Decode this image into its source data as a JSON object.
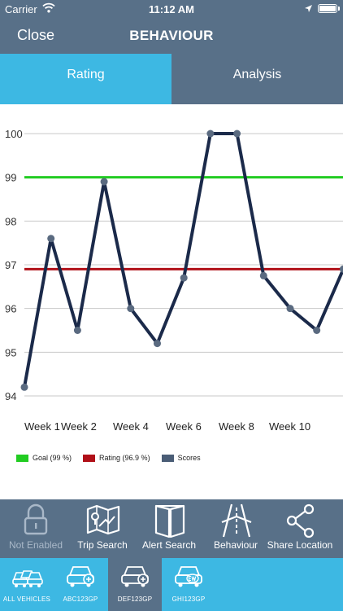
{
  "status_bar": {
    "carrier": "Carrier",
    "time": "11:12 AM"
  },
  "nav": {
    "close_label": "Close",
    "title": "BEHAVIOUR"
  },
  "tabs": [
    {
      "label": "Rating",
      "active": true
    },
    {
      "label": "Analysis",
      "active": false
    }
  ],
  "chart_data": {
    "type": "line",
    "y_ticks": [
      "100",
      "99",
      "98",
      "97",
      "96",
      "95",
      "94"
    ],
    "ylim": [
      94,
      100
    ],
    "x_tick_labels": [
      "Week 1",
      "Week 2",
      "Week 4",
      "Week 6",
      "Week 8",
      "Week 10"
    ],
    "series": [
      {
        "name": "Scores",
        "color": "#1b2a4a",
        "x": [
          1,
          2,
          3,
          4,
          5,
          6,
          7,
          8,
          9,
          10,
          11,
          12,
          13,
          14
        ],
        "values": [
          94.2,
          97.6,
          95.5,
          98.9,
          96.0,
          95.2,
          96.7,
          100.0,
          100.0,
          96.75,
          96.0,
          95.5,
          96.9,
          97.1
        ]
      }
    ],
    "reference_lines": [
      {
        "name": "Goal (99 %)",
        "value": 99,
        "color": "#22cc22"
      },
      {
        "name": "Rating (96.9 %)",
        "value": 96.9,
        "color": "#b01018"
      }
    ],
    "current_marker": {
      "x": 13,
      "value": 96.9,
      "color": "#5bbcef"
    },
    "grid": true,
    "legend_position": "bottom-left"
  },
  "legend": [
    {
      "label": "Goal (99 %)",
      "color": "#22cc22"
    },
    {
      "label": "Rating (96.9 %)",
      "color": "#b01018"
    },
    {
      "label": "Scores",
      "color": "#4a5d76"
    }
  ],
  "toolbar": [
    {
      "label": "Not Enabled",
      "icon": "lock-icon",
      "enabled": false
    },
    {
      "label": "Trip Search",
      "icon": "map-icon",
      "enabled": true
    },
    {
      "label": "Alert Search",
      "icon": "book-icon",
      "enabled": true
    },
    {
      "label": "Behaviour",
      "icon": "road-icon",
      "enabled": true
    },
    {
      "label": "Share Location",
      "icon": "share-icon",
      "enabled": true
    }
  ],
  "vehicles": [
    {
      "label": "ALL VEHICLES",
      "icon": "vehicles-icon",
      "active": false
    },
    {
      "label": "ABC123GP",
      "icon": "car-plus-icon",
      "active": false
    },
    {
      "label": "DEF123GP",
      "icon": "car-plus-icon",
      "active": true
    },
    {
      "label": "GHI123GP",
      "icon": "car-ew-icon",
      "active": false
    }
  ]
}
